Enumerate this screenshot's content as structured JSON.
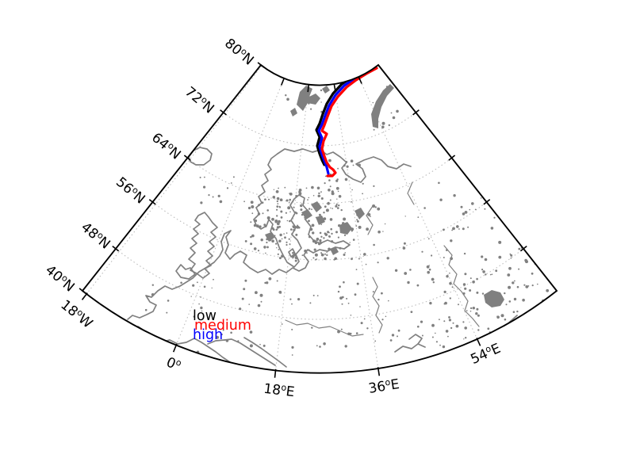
{
  "figure": {
    "kind": "map-plot",
    "background": "#ffffff"
  },
  "colors": {
    "frame": "#000000",
    "coast": "#808080",
    "graticule": "#bdbdbd",
    "low": "#000000",
    "medium": "#ff0000",
    "high": "#0000ff"
  },
  "axis": {
    "lat": [
      {
        "value": "80",
        "sup": "o",
        "hem": "N"
      },
      {
        "value": "72",
        "sup": "o",
        "hem": "N"
      },
      {
        "value": "64",
        "sup": "o",
        "hem": "N"
      },
      {
        "value": "56",
        "sup": "o",
        "hem": "N"
      },
      {
        "value": "48",
        "sup": "o",
        "hem": "N"
      },
      {
        "value": "40",
        "sup": "o",
        "hem": "N"
      }
    ],
    "lon": [
      {
        "value": "18",
        "sup": "o",
        "hem": "W"
      },
      {
        "value": "0",
        "sup": "o",
        "hem": ""
      },
      {
        "value": "18",
        "sup": "o",
        "hem": "E"
      },
      {
        "value": "36",
        "sup": "o",
        "hem": "E"
      },
      {
        "value": "54",
        "sup": "o",
        "hem": "E"
      }
    ]
  },
  "legend": {
    "items": [
      {
        "label": "low"
      },
      {
        "label": "medium"
      },
      {
        "label": "high"
      }
    ]
  },
  "chart_data": {
    "type": "map",
    "region": "Europe / Scandinavia / Barents Sea",
    "projection": "conic fan (curved parallels, converging meridians)",
    "graticule": {
      "lat_deg": [
        40,
        48,
        56,
        64,
        72,
        80
      ],
      "lon_deg": [
        -18,
        0,
        18,
        36,
        54
      ],
      "style": "dotted light gray"
    },
    "series": [
      {
        "name": "low",
        "color": "#000000",
        "description": "trajectory from top edge (~80N,40E) south to Kola/White Sea area"
      },
      {
        "name": "medium",
        "color": "#ff0000",
        "description": "parallel trajectory, ends with small hook near White Sea (~65N,40E)"
      },
      {
        "name": "high",
        "color": "#0000ff",
        "description": "parallel trajectory between black and red lines"
      }
    ],
    "legend_position": "inside map, lower-left (over southern France/Alps region)",
    "coastline_color": "#808080"
  }
}
